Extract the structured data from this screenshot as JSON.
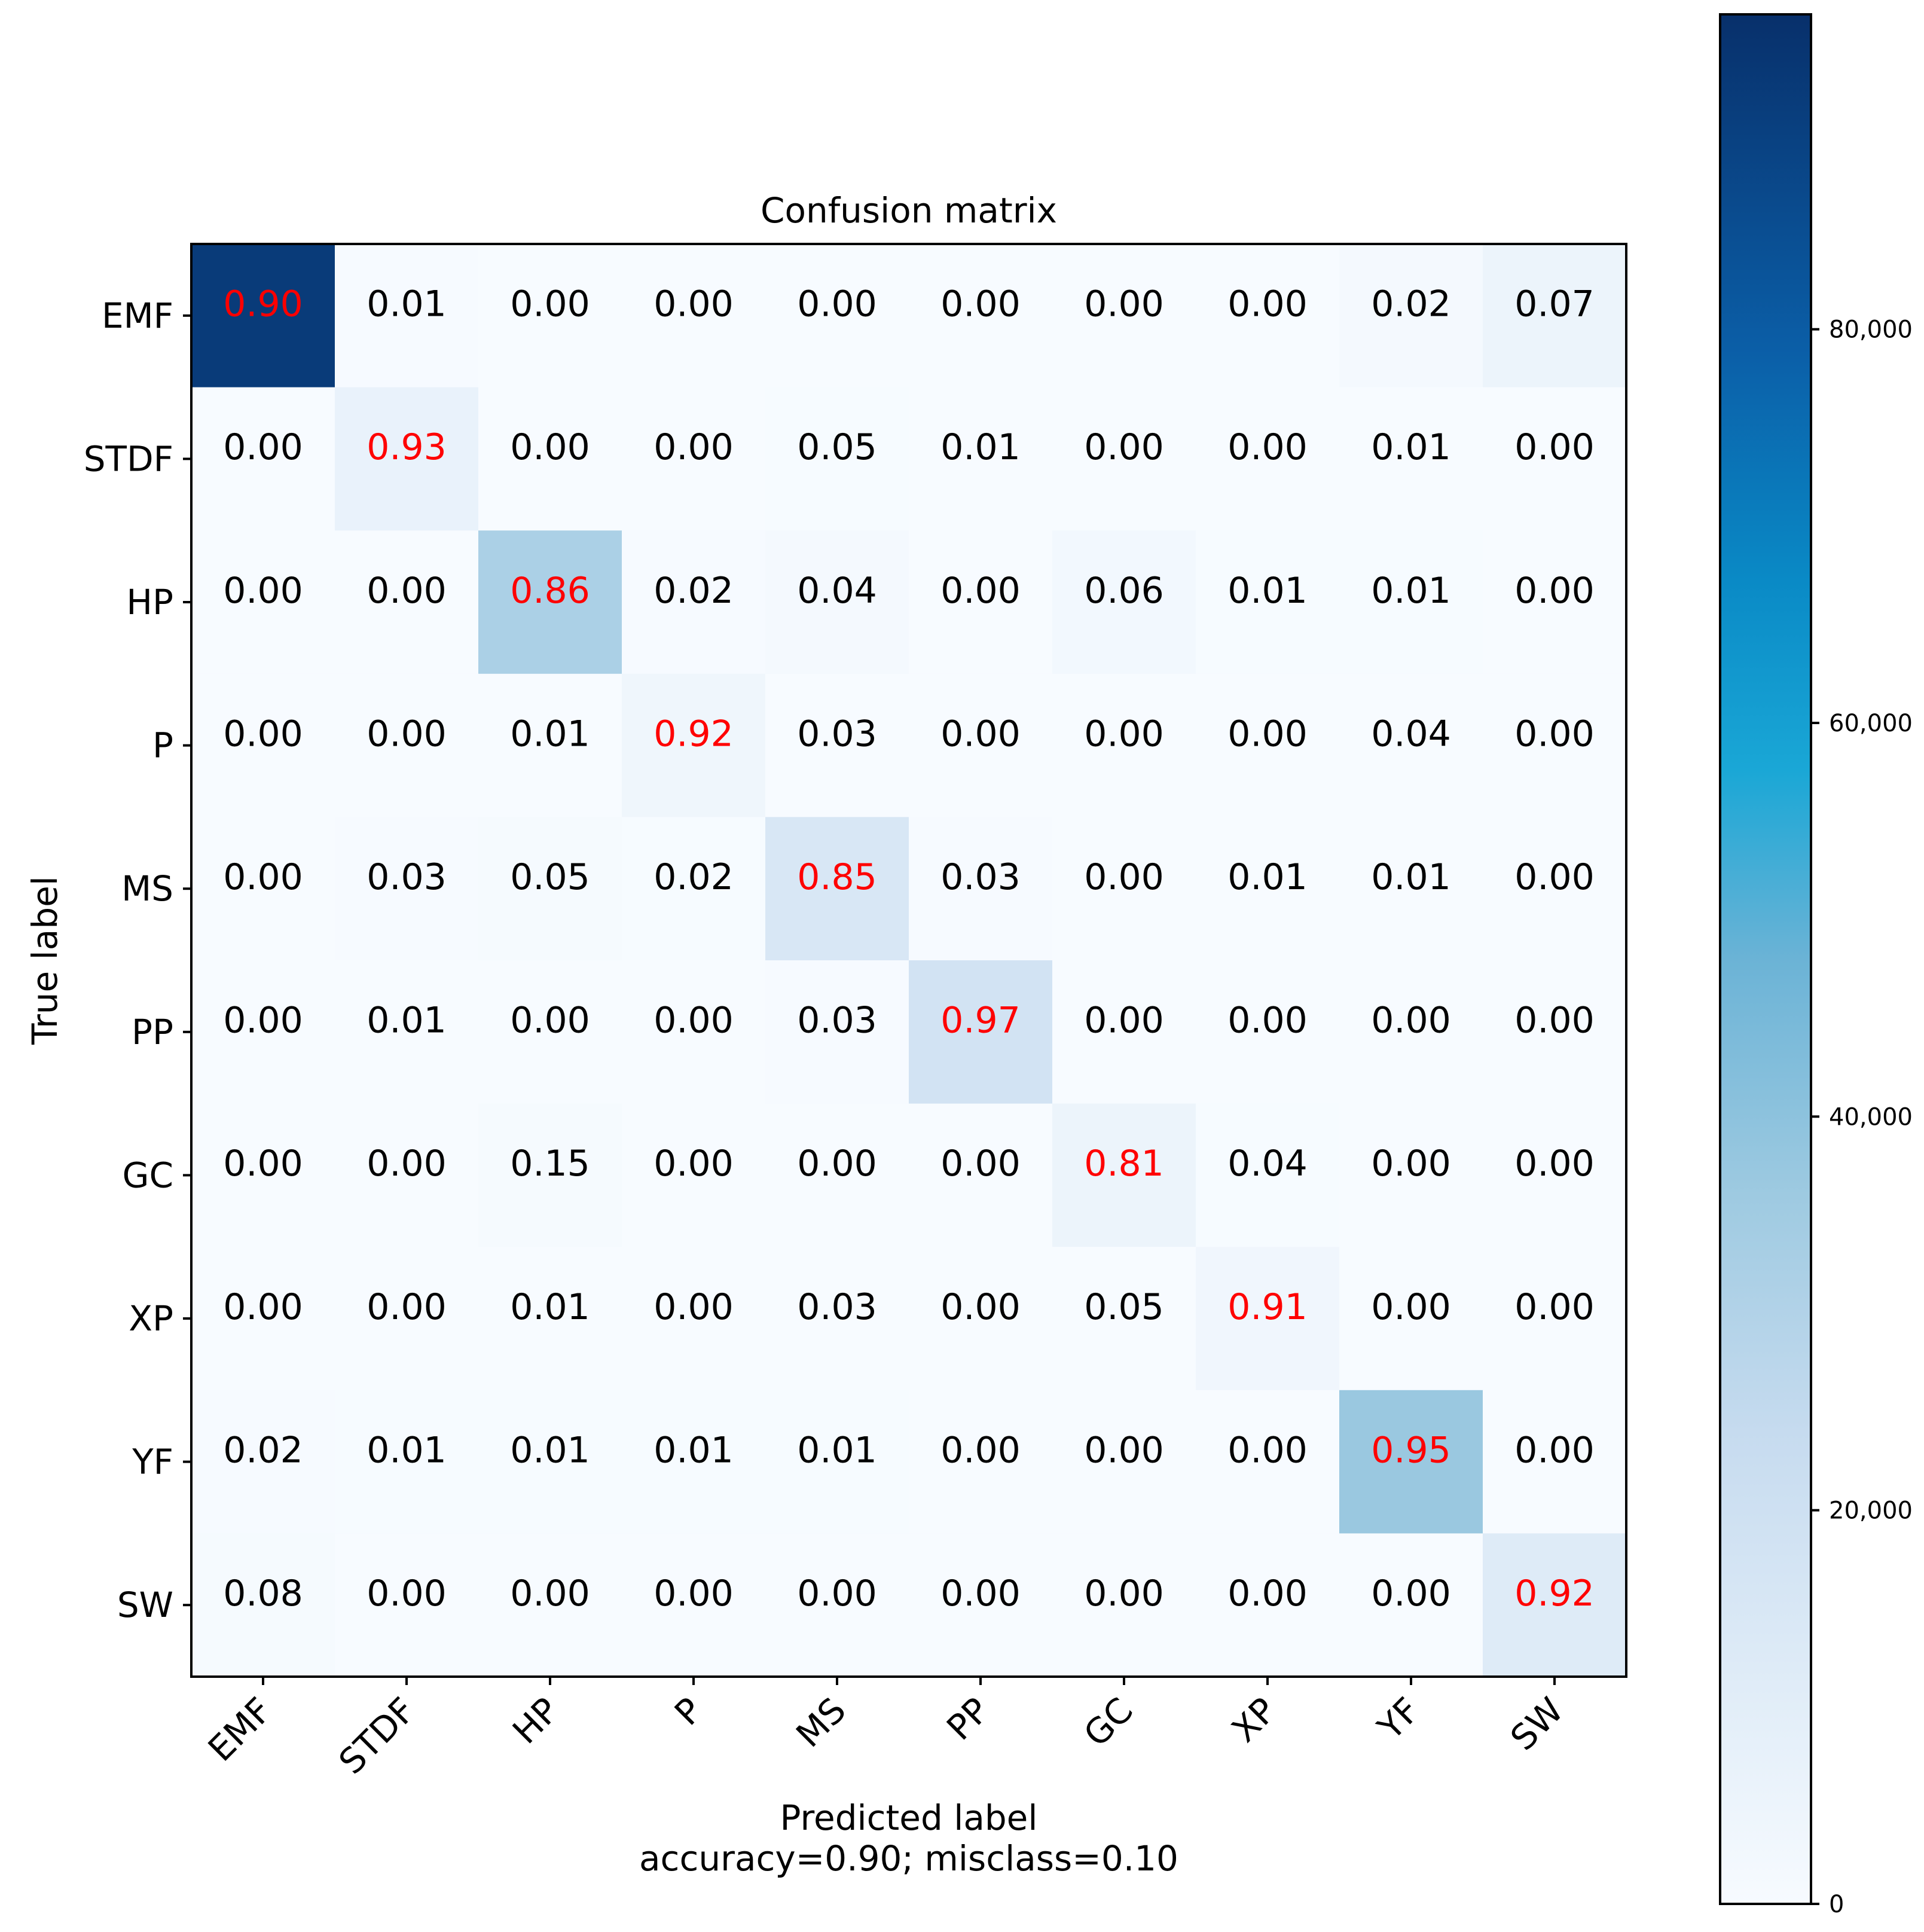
{
  "chart_data": {
    "type": "heatmap",
    "title": "Confusion matrix",
    "xlabel": "Predicted label",
    "xlabel_note": "accuracy=0.90; misclass=0.10",
    "ylabel": "True label",
    "labels": [
      "EMF",
      "STDF",
      "HP",
      "P",
      "MS",
      "PP",
      "GC",
      "XP",
      "YF",
      "SW"
    ],
    "values": [
      [
        0.9,
        0.01,
        0.0,
        0.0,
        0.0,
        0.0,
        0.0,
        0.0,
        0.02,
        0.07
      ],
      [
        0.0,
        0.93,
        0.0,
        0.0,
        0.05,
        0.01,
        0.0,
        0.0,
        0.01,
        0.0
      ],
      [
        0.0,
        0.0,
        0.86,
        0.02,
        0.04,
        0.0,
        0.06,
        0.01,
        0.01,
        0.0
      ],
      [
        0.0,
        0.0,
        0.01,
        0.92,
        0.03,
        0.0,
        0.0,
        0.0,
        0.04,
        0.0
      ],
      [
        0.0,
        0.03,
        0.05,
        0.02,
        0.85,
        0.03,
        0.0,
        0.01,
        0.01,
        0.0
      ],
      [
        0.0,
        0.01,
        0.0,
        0.0,
        0.03,
        0.97,
        0.0,
        0.0,
        0.0,
        0.0
      ],
      [
        0.0,
        0.0,
        0.15,
        0.0,
        0.0,
        0.0,
        0.81,
        0.04,
        0.0,
        0.0
      ],
      [
        0.0,
        0.0,
        0.01,
        0.0,
        0.03,
        0.0,
        0.05,
        0.91,
        0.0,
        0.0
      ],
      [
        0.02,
        0.01,
        0.01,
        0.01,
        0.01,
        0.0,
        0.0,
        0.0,
        0.95,
        0.0
      ],
      [
        0.08,
        0.0,
        0.0,
        0.0,
        0.0,
        0.0,
        0.0,
        0.0,
        0.0,
        0.92
      ]
    ],
    "cell_counts_estimate": [
      [
        92000,
        500,
        0,
        0,
        0,
        0,
        0,
        0,
        1500,
        5500
      ],
      [
        0,
        6500,
        0,
        0,
        300,
        100,
        0,
        0,
        100,
        0
      ],
      [
        0,
        0,
        32000,
        700,
        1500,
        0,
        2200,
        300,
        300,
        0
      ],
      [
        0,
        0,
        60,
        4000,
        120,
        0,
        0,
        0,
        180,
        0
      ],
      [
        0,
        500,
        800,
        300,
        15000,
        500,
        0,
        150,
        150,
        0
      ],
      [
        0,
        100,
        0,
        0,
        500,
        18000,
        0,
        0,
        0,
        0
      ],
      [
        0,
        0,
        1000,
        0,
        0,
        0,
        5500,
        300,
        0,
        0
      ],
      [
        0,
        0,
        40,
        0,
        100,
        0,
        200,
        3500,
        0,
        0
      ],
      [
        600,
        300,
        300,
        300,
        300,
        0,
        0,
        0,
        37000,
        0
      ],
      [
        1000,
        0,
        0,
        0,
        0,
        0,
        0,
        0,
        0,
        12000
      ]
    ],
    "colorbar": {
      "min": 0,
      "max": 96000,
      "ticks": [
        0,
        20000,
        40000,
        60000,
        80000
      ],
      "tick_labels": [
        "0",
        "20,000",
        "40,000",
        "60,000",
        "80,000"
      ]
    },
    "colors": {
      "diagonal_text": "#ff0000",
      "offdiagonal_text": "#000000",
      "axis": "#000000"
    }
  }
}
